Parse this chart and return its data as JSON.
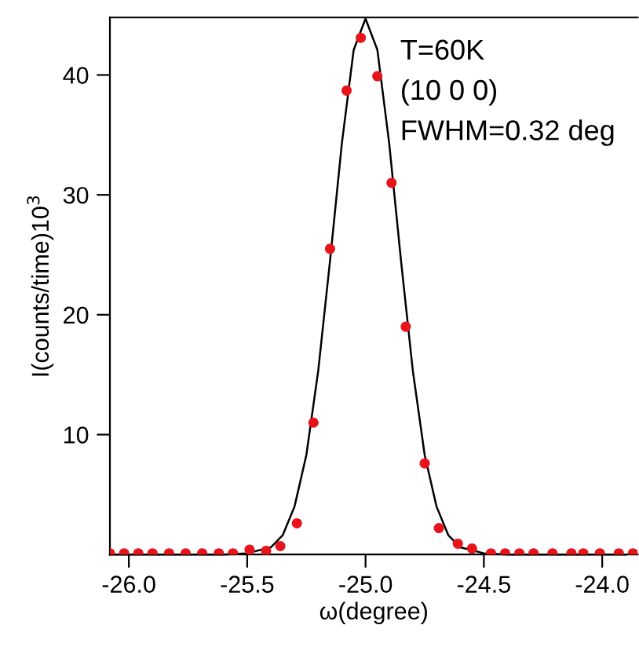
{
  "chart_data": {
    "type": "scatter",
    "xlabel": "ω(degree)",
    "ylabel": "I(counts/time)10$^{3}$",
    "annotations": [
      "T=60K",
      "(10 0 0)",
      "FWHM=0.32 deg"
    ],
    "xlim": [
      -26.08,
      -23.85
    ],
    "ylim": [
      0,
      44.8
    ],
    "xticks": [
      {
        "value": -26,
        "label": "-26.0"
      },
      -25.5,
      {
        "value": -25,
        "label": "-25.0"
      },
      -24.5,
      {
        "value": -24,
        "label": "-24.0"
      }
    ],
    "yticks": [
      10,
      20,
      30,
      40
    ],
    "grid": false,
    "legend": false,
    "series": [
      {
        "marker": "circle",
        "color": "#e8141c",
        "x": [
          -26.08,
          -26.02,
          -25.96,
          -25.9,
          -25.83,
          -25.76,
          -25.69,
          -25.62,
          -25.56,
          -25.49,
          -25.42,
          -25.36,
          -25.29,
          -25.22,
          -25.15,
          -25.08,
          -25.02,
          -24.95,
          -24.89,
          -24.83,
          -24.75,
          -24.69,
          -24.61,
          -24.55,
          -24.47,
          -24.41,
          -24.35,
          -24.29,
          -24.21,
          -24.13,
          -24.08,
          -24.01,
          -23.93,
          -23.87
        ],
        "values": [
          0.1,
          0.1,
          0.1,
          0.1,
          0.1,
          0.1,
          0.1,
          0.1,
          0.1,
          0.4,
          0.3,
          0.7,
          2.6,
          11.0,
          25.5,
          38.7,
          43.1,
          39.9,
          31.0,
          19.0,
          7.6,
          2.2,
          0.9,
          0.5,
          0.1,
          0.1,
          0.1,
          0.1,
          0.1,
          0.1,
          0.1,
          0.1,
          0.1,
          0.1
        ]
      },
      {
        "type": "line",
        "marker": "none",
        "color": "#000000",
        "line_style": "solid",
        "x": [
          -26.08,
          -25.6,
          -25.5,
          -25.4,
          -25.35,
          -25.3,
          -25.25,
          -25.2,
          -25.15,
          -25.1,
          -25.05,
          -25.0,
          -24.95,
          -24.9,
          -24.85,
          -24.8,
          -24.75,
          -24.7,
          -24.65,
          -24.6,
          -24.5,
          -24.4,
          -23.9
        ],
        "values": [
          0,
          0,
          0.1,
          0.6,
          1.6,
          4.0,
          8.3,
          15.3,
          24.5,
          34.3,
          42.1,
          44.7,
          42.1,
          34.3,
          24.5,
          15.3,
          8.3,
          4.0,
          1.6,
          0.6,
          0.1,
          0,
          0
        ]
      }
    ]
  }
}
